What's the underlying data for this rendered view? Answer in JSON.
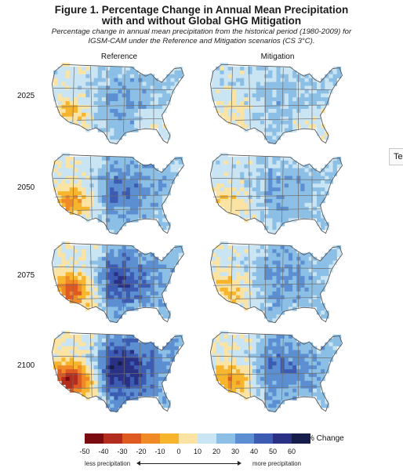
{
  "title_line1": "Figure 1. Percentage Change in Annual Mean Precipitation",
  "title_line2": "with and without Global GHG Mitigation",
  "subtitle_line1": "Percentage change in annual mean precipitation from the historical period (1980-2009) for",
  "subtitle_line2": "IGSM-CAM under the Reference and Mitigation scenarios (CS 3°C).",
  "columns": [
    "Reference",
    "Mitigation"
  ],
  "rows": [
    "2025",
    "2050",
    "2075",
    "2100"
  ],
  "tab_label": "Te",
  "legend": {
    "unit": "% Change",
    "ticks": [
      "-50",
      "-40",
      "-30",
      "-20",
      "-10",
      "0",
      "10",
      "20",
      "30",
      "40",
      "50",
      "60"
    ],
    "colors": [
      "#7a0b10",
      "#b32d1e",
      "#df5a22",
      "#ef8a27",
      "#f7b52d",
      "#fbe4a3",
      "#c9e4f3",
      "#8cbfe6",
      "#5b8fd2",
      "#3c5bb3",
      "#2a3185",
      "#161d4a"
    ],
    "less": "less precipitation",
    "more": "more precipitation"
  },
  "maps_mean_bin": {
    "Reference": {
      "2025": 6,
      "2050": 6,
      "2075": 8,
      "2100": 9
    },
    "Mitigation": {
      "2025": 6,
      "2050": 6,
      "2075": 6,
      "2100": 7
    }
  }
}
